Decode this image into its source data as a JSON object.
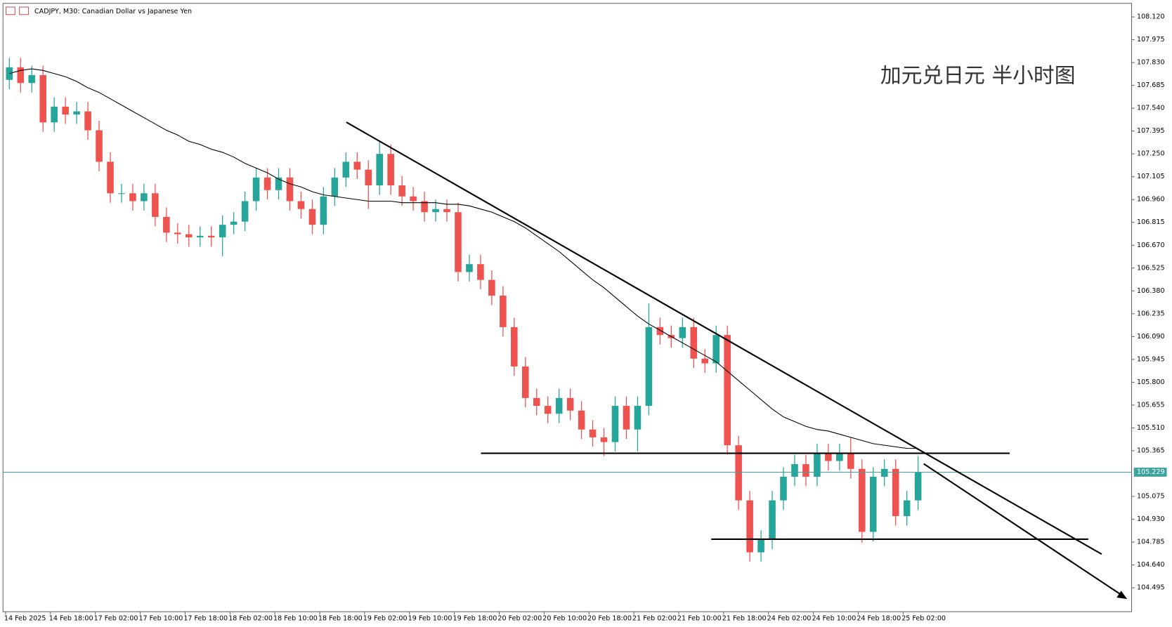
{
  "chart_data": {
    "type": "candlestick",
    "title": "CADJPY, M30:  Canadian Dollar vs Japanese Yen",
    "annotation": "加元兑日元 半小时图",
    "x_labels": [
      "14 Feb 2025",
      "14 Feb 18:00",
      "17 Feb 02:00",
      "17 Feb 10:00",
      "17 Feb 18:00",
      "18 Feb 02:00",
      "18 Feb 10:00",
      "18 Feb 18:00",
      "19 Feb 02:00",
      "19 Feb 10:00",
      "19 Feb 18:00",
      "20 Feb 02:00",
      "20 Feb 10:00",
      "20 Feb 18:00",
      "21 Feb 02:00",
      "21 Feb 10:00",
      "21 Feb 18:00",
      "24 Feb 02:00",
      "24 Feb 10:00",
      "24 Feb 18:00",
      "25 Feb 02:00"
    ],
    "up_color": "#26a69a",
    "down_color": "#ef5350",
    "open": [
      107.72,
      107.8,
      107.7,
      107.75,
      107.45,
      107.55,
      107.5,
      107.52,
      107.4,
      107.2,
      107.0,
      107.0,
      106.95,
      107.0,
      106.85,
      106.75,
      106.74,
      106.72,
      106.73,
      106.72,
      106.8,
      106.82,
      106.95,
      107.1,
      107.02,
      107.1,
      106.95,
      106.9,
      106.8,
      106.98,
      107.1,
      107.2,
      107.15,
      107.05,
      107.25,
      107.05,
      106.98,
      106.95,
      106.88,
      106.9,
      106.88,
      106.5,
      106.55,
      106.45,
      106.35,
      106.15,
      105.9,
      105.7,
      105.65,
      105.6,
      105.7,
      105.62,
      105.5,
      105.45,
      105.42,
      105.65,
      105.5,
      105.65,
      106.15,
      106.1,
      106.08,
      106.15,
      105.95,
      105.92,
      106.1,
      105.4,
      105.05,
      104.72,
      104.8,
      105.05,
      105.2,
      105.28,
      105.2,
      105.35,
      105.3,
      105.35,
      105.25,
      104.85,
      105.2,
      105.25,
      104.95,
      105.05
    ],
    "high": [
      107.86,
      107.86,
      107.81,
      107.81,
      107.61,
      107.61,
      107.58,
      107.58,
      107.46,
      107.26,
      107.06,
      107.06,
      107.06,
      107.06,
      106.91,
      106.81,
      106.8,
      106.79,
      106.79,
      106.86,
      106.88,
      107.01,
      107.16,
      107.16,
      107.16,
      107.16,
      107.01,
      106.96,
      107.04,
      107.16,
      107.26,
      107.26,
      107.21,
      107.33,
      107.31,
      107.11,
      107.04,
      107.01,
      106.96,
      106.96,
      106.94,
      106.61,
      106.61,
      106.51,
      106.41,
      106.21,
      105.96,
      105.76,
      105.71,
      105.76,
      105.76,
      105.68,
      105.56,
      105.51,
      105.71,
      105.71,
      105.71,
      106.3,
      106.21,
      106.16,
      106.21,
      106.21,
      106.01,
      106.16,
      106.16,
      105.46,
      105.11,
      104.86,
      105.11,
      105.26,
      105.34,
      105.34,
      105.41,
      105.41,
      105.41,
      105.45,
      105.31,
      105.26,
      105.31,
      105.31,
      105.11,
      105.33
    ],
    "low": [
      107.66,
      107.64,
      107.64,
      107.39,
      107.39,
      107.44,
      107.44,
      107.34,
      107.14,
      106.94,
      106.94,
      106.89,
      106.89,
      106.79,
      106.69,
      106.68,
      106.66,
      106.66,
      106.66,
      106.6,
      106.74,
      106.76,
      106.89,
      106.96,
      106.96,
      106.89,
      106.84,
      106.74,
      106.74,
      106.92,
      107.04,
      107.09,
      106.9,
      106.99,
      106.99,
      106.92,
      106.89,
      106.82,
      106.82,
      106.82,
      106.44,
      106.44,
      106.39,
      106.29,
      106.09,
      105.84,
      105.64,
      105.59,
      105.54,
      105.54,
      105.56,
      105.44,
      105.39,
      105.33,
      105.36,
      105.44,
      105.36,
      105.59,
      106.04,
      106.02,
      106.02,
      105.89,
      105.86,
      105.86,
      105.34,
      104.99,
      104.66,
      104.66,
      104.74,
      104.99,
      105.14,
      105.14,
      105.14,
      105.24,
      105.24,
      105.19,
      104.78,
      104.79,
      105.14,
      104.89,
      104.89,
      104.99
    ],
    "close": [
      107.8,
      107.7,
      107.75,
      107.45,
      107.55,
      107.5,
      107.52,
      107.4,
      107.2,
      107.0,
      107.0,
      106.95,
      107.0,
      106.85,
      106.75,
      106.74,
      106.72,
      106.73,
      106.72,
      106.8,
      106.82,
      106.95,
      107.1,
      107.02,
      107.1,
      106.95,
      106.9,
      106.8,
      106.98,
      107.1,
      107.2,
      107.15,
      107.05,
      107.25,
      107.05,
      106.98,
      106.95,
      106.88,
      106.9,
      106.88,
      106.5,
      106.55,
      106.45,
      106.35,
      106.15,
      105.9,
      105.7,
      105.65,
      105.6,
      105.7,
      105.62,
      105.5,
      105.45,
      105.42,
      105.65,
      105.5,
      105.65,
      106.15,
      106.1,
      106.08,
      106.15,
      105.95,
      105.92,
      106.1,
      105.4,
      105.05,
      104.72,
      104.8,
      105.05,
      105.2,
      105.28,
      105.2,
      105.35,
      105.3,
      105.35,
      105.25,
      104.85,
      105.2,
      105.25,
      104.95,
      105.05,
      105.23
    ],
    "moving_average": {
      "color": "#000000",
      "values": [
        107.76,
        107.78,
        107.79,
        107.78,
        107.76,
        107.74,
        107.71,
        107.67,
        107.64,
        107.6,
        107.56,
        107.52,
        107.48,
        107.44,
        107.4,
        107.37,
        107.33,
        107.31,
        107.28,
        107.26,
        107.23,
        107.19,
        107.16,
        107.13,
        107.09,
        107.06,
        107.04,
        107.01,
        106.99,
        106.98,
        106.97,
        106.96,
        106.95,
        106.95,
        106.95,
        106.94,
        106.94,
        106.94,
        106.94,
        106.93,
        106.93,
        106.92,
        106.9,
        106.88,
        106.85,
        106.82,
        106.78,
        106.73,
        106.68,
        106.63,
        106.57,
        106.51,
        106.45,
        106.4,
        106.34,
        106.28,
        106.22,
        106.17,
        106.13,
        106.09,
        106.05,
        106.01,
        105.97,
        105.93,
        105.87,
        105.81,
        105.75,
        105.69,
        105.63,
        105.58,
        105.55,
        105.52,
        105.5,
        105.49,
        105.47,
        105.45,
        105.43,
        105.41,
        105.4,
        105.39,
        105.38,
        105.38
      ]
    },
    "current_price": {
      "value": 105.229,
      "label": "105.229",
      "color": "#3aa3a0"
    },
    "ylim": [
      104.343,
      108.206
    ],
    "yticks": [
      {
        "value": 108.12,
        "label": "108.120"
      },
      107.975,
      {
        "value": 107.83,
        "label": "107.830"
      },
      107.685,
      {
        "value": 107.54,
        "label": "107.540"
      },
      107.395,
      {
        "value": 107.25,
        "label": "107.250"
      },
      107.105,
      {
        "value": 106.96,
        "label": "106.960"
      },
      106.815,
      {
        "value": 106.67,
        "label": "106.670"
      },
      106.525,
      {
        "value": 106.38,
        "label": "106.380"
      },
      106.235,
      {
        "value": 106.09,
        "label": "106.090"
      },
      105.945,
      {
        "value": 105.8,
        "label": "105.800"
      },
      105.655,
      {
        "value": 105.51,
        "label": "105.510"
      },
      105.365,
      105.075,
      {
        "value": 104.93,
        "label": "104.930"
      },
      104.785,
      {
        "value": 104.64,
        "label": "104.640"
      },
      104.495
    ],
    "grid": false
  }
}
